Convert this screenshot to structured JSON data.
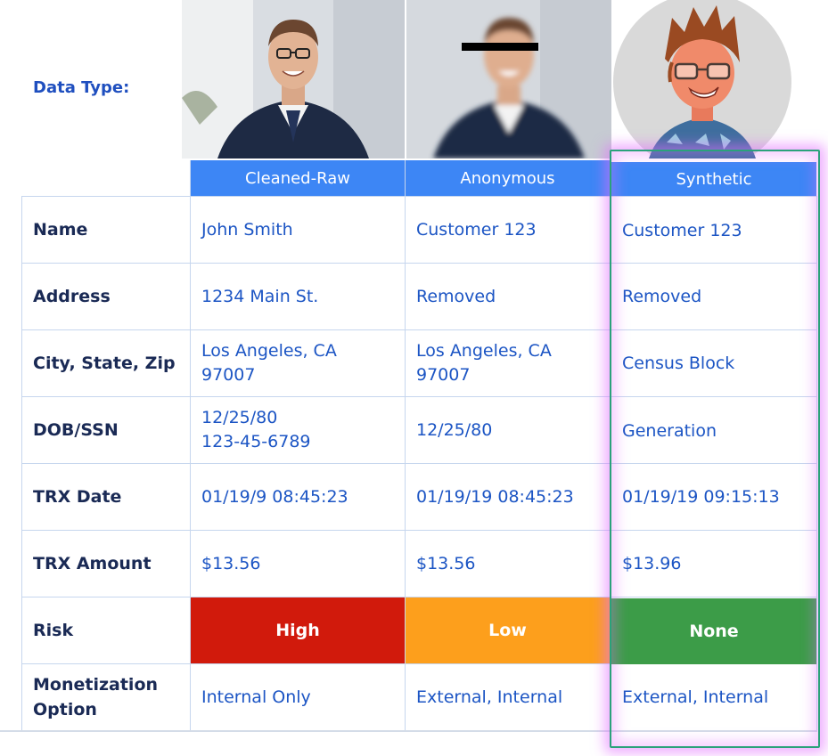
{
  "data_type_label": "Data Type:",
  "columns": [
    "Cleaned-Raw",
    "Anonymous",
    "Synthetic"
  ],
  "rows": [
    {
      "label": "Name",
      "values": [
        "John Smith",
        "Customer 123",
        "Customer 123"
      ]
    },
    {
      "label": "Address",
      "values": [
        "1234 Main St.",
        "Removed",
        "Removed"
      ]
    },
    {
      "label": "City, State, Zip",
      "values": [
        "Los Angeles, CA\n97007",
        "Los Angeles, CA\n97007",
        "Census Block"
      ]
    },
    {
      "label": "DOB/SSN",
      "values": [
        "12/25/80\n123-45-6789",
        "12/25/80",
        "Generation"
      ]
    },
    {
      "label": "TRX Date",
      "values": [
        "01/19/9 08:45:23",
        "01/19/19 08:45:23",
        "01/19/19 09:15:13"
      ]
    },
    {
      "label": "TRX Amount",
      "values": [
        "$13.56",
        "$13.56",
        "$13.96"
      ]
    },
    {
      "label": "Risk",
      "values": [
        "High",
        "Low",
        "None"
      ]
    },
    {
      "label": "Monetization\nOption",
      "values": [
        "Internal Only",
        "External, Internal",
        "External, Internal"
      ]
    }
  ],
  "colors": {
    "header_blue": "#3d86f5",
    "risk_high": "#d11a0c",
    "risk_low": "#fd9f1c",
    "risk_none": "#3c9c48",
    "highlight_glow": "#e26eff"
  },
  "images": {
    "raw_photo": "businessman-photo",
    "anon_photo": "businessman-photo-censored",
    "synthetic_avatar": "cartoon-avatar"
  }
}
